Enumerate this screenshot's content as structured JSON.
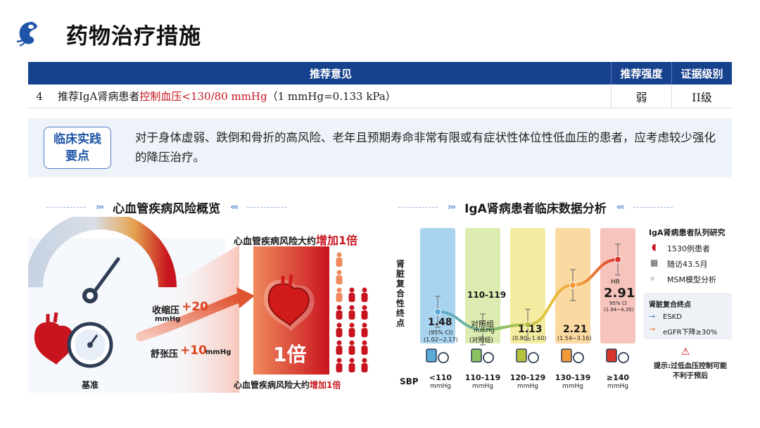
{
  "page": {
    "title": "药物治疗措施"
  },
  "table": {
    "headers": {
      "num": "",
      "recommendation": "推荐意见",
      "strength": "推荐强度",
      "evidence": "证据级别"
    },
    "row": {
      "num": "4",
      "rec_prefix": "推荐IgA肾病患者",
      "rec_red": "控制血压<130/80 mmHg",
      "rec_suffix": "（1 mmHg=0.133 kPa）",
      "strength": "弱",
      "evidence": "II级"
    }
  },
  "practice": {
    "badge_line1": "临床实践",
    "badge_line2": "要点",
    "text": "对于身体虚弱、跌倒和骨折的高风险、老年且预期寿命非常有限或有症状性体位性低血压的患者，应考虑较少强化的降压治疗。"
  },
  "left": {
    "section_title": "心血管疾病风险概览",
    "risk_top_prefix": "心血管疾病风险大约",
    "risk_top_highlight": "增加1倍",
    "systolic_label": "收缩压",
    "systolic_value": "+20",
    "systolic_unit": "mmHg",
    "diastolic_label": "舒张压",
    "diastolic_value": "+10",
    "diastolic_unit": "mmHg",
    "baseline_label": "基准",
    "big_label": "1倍",
    "risk_bottom_prefix": "心血管疾病风险大约",
    "risk_bottom_highlight": "增加1倍"
  },
  "right": {
    "section_title": "IgA肾病患者临床数据分析",
    "y_axis_label": "肾脏复合性终点",
    "sbp_label": "SBP",
    "unit": "mmHg",
    "groups": [
      {
        "sbp": "<110",
        "value": "1.48",
        "ci_label": "(95% CI)",
        "ci": "(1.02~2.17)",
        "color": "#a9d4f0"
      },
      {
        "sbp": "110-119",
        "range_label": "110-119",
        "ref_line1": "对照组",
        "ref_unit": "mmHg",
        "ref_line2": "(对照组)",
        "color": "#dcecb0"
      },
      {
        "sbp": "120-129",
        "value": "1.13",
        "ci": "(0.80~1.60)",
        "color": "#f4eca0"
      },
      {
        "sbp": "130-139",
        "value": "2.21",
        "ci": "(1.54~3.16)",
        "color": "#fbd9a0"
      },
      {
        "sbp": "≥140",
        "hr_label": "HR",
        "value": "2.91",
        "ci_label": "95% CI",
        "ci": "(1.94~4.35)",
        "color": "#f7c4bd"
      }
    ],
    "chart_data": {
      "type": "scatter",
      "title": "IgA肾病患者临床数据分析",
      "xlabel": "SBP (mmHg)",
      "ylabel": "肾脏复合性终点",
      "categories": [
        "<110",
        "110-119",
        "120-129",
        "130-139",
        "≥140"
      ],
      "series": [
        {
          "name": "HR",
          "values": [
            1.48,
            1.0,
            1.13,
            2.21,
            2.91
          ]
        }
      ]
    },
    "legend": {
      "study_title": "IgA肾病患者队列研究",
      "patients": "1530例患者",
      "followup": "随访43.5月",
      "model": "MSM模型分析",
      "endpoint_title": "肾脏复合终点",
      "esk": "ESKD",
      "egfr": "eGFR下降≥30%",
      "tip": "提示:过低血压控制可能不利于预后"
    }
  }
}
